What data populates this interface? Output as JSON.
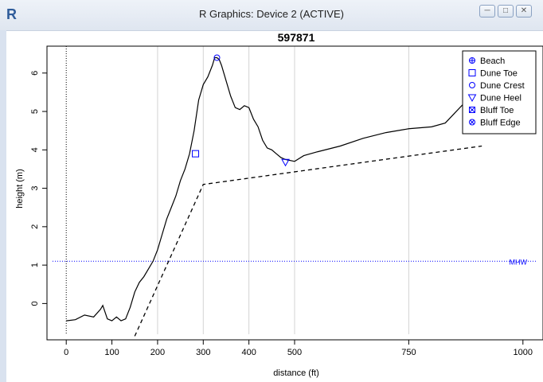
{
  "window": {
    "title": "R Graphics: Device 2 (ACTIVE)",
    "app_icon": "R",
    "buttons": [
      "minimize-icon",
      "maximize-icon",
      "close-icon"
    ]
  },
  "chart_data": {
    "type": "line",
    "title": "597871",
    "xlabel": "distance (ft)",
    "ylabel": "height (m)",
    "xlim": [
      -30,
      1030
    ],
    "ylim": [
      -0.8,
      6.7
    ],
    "x_ticks": [
      0,
      100,
      200,
      300,
      400,
      500,
      750,
      1000
    ],
    "y_ticks": [
      0,
      1,
      2,
      3,
      4,
      5,
      6
    ],
    "vertical_grid_x": [
      200,
      300,
      400,
      500,
      750
    ],
    "profile": {
      "x": [
        0,
        20,
        40,
        60,
        75,
        80,
        90,
        100,
        110,
        120,
        130,
        140,
        150,
        160,
        170,
        180,
        190,
        200,
        210,
        220,
        230,
        240,
        250,
        260,
        270,
        280,
        290,
        300,
        310,
        320,
        325,
        330,
        335,
        340,
        350,
        360,
        370,
        380,
        390,
        400,
        410,
        420,
        430,
        440,
        450,
        460,
        470,
        480,
        500,
        520,
        550,
        600,
        650,
        700,
        750,
        800,
        830,
        850,
        870,
        880
      ],
      "y": [
        -0.45,
        -0.42,
        -0.3,
        -0.35,
        -0.15,
        -0.05,
        -0.4,
        -0.45,
        -0.35,
        -0.45,
        -0.4,
        -0.1,
        0.3,
        0.55,
        0.7,
        0.9,
        1.1,
        1.4,
        1.8,
        2.2,
        2.5,
        2.8,
        3.2,
        3.5,
        3.9,
        4.5,
        5.3,
        5.7,
        5.9,
        6.2,
        6.4,
        6.4,
        6.35,
        6.2,
        5.8,
        5.4,
        5.1,
        5.05,
        5.15,
        5.1,
        4.8,
        4.6,
        4.25,
        4.05,
        4.0,
        3.9,
        3.8,
        3.75,
        3.7,
        3.85,
        3.95,
        4.1,
        4.3,
        4.45,
        4.55,
        4.6,
        4.7,
        4.95,
        5.2,
        5.35
      ]
    },
    "dashed_line": {
      "x": [
        150,
        300,
        910
      ],
      "y": [
        -0.85,
        3.1,
        4.1
      ]
    },
    "mhw": {
      "y": 1.1,
      "label": "MHW",
      "color": "#0000ff"
    },
    "markers": [
      {
        "name": "Dune Toe",
        "symbol": "square",
        "x": 283,
        "y": 3.9
      },
      {
        "name": "Dune Crest",
        "symbol": "circle",
        "x": 330,
        "y": 6.4
      },
      {
        "name": "Dune Heel",
        "symbol": "triangle-down",
        "x": 480,
        "y": 3.68
      }
    ],
    "legend": {
      "position": "top-right",
      "entries": [
        {
          "label": "Beach",
          "symbol": "plus-circle"
        },
        {
          "label": "Dune Toe",
          "symbol": "square"
        },
        {
          "label": "Dune Crest",
          "symbol": "circle"
        },
        {
          "label": "Dune Heel",
          "symbol": "triangle-down"
        },
        {
          "label": "Bluff Toe",
          "symbol": "square-x"
        },
        {
          "label": "Bluff Edge",
          "symbol": "circle-x"
        }
      ]
    },
    "colors": {
      "profile": "#000000",
      "dashed": "#000000",
      "marker": "#0000ff",
      "grid": "#d3d3d3"
    }
  }
}
